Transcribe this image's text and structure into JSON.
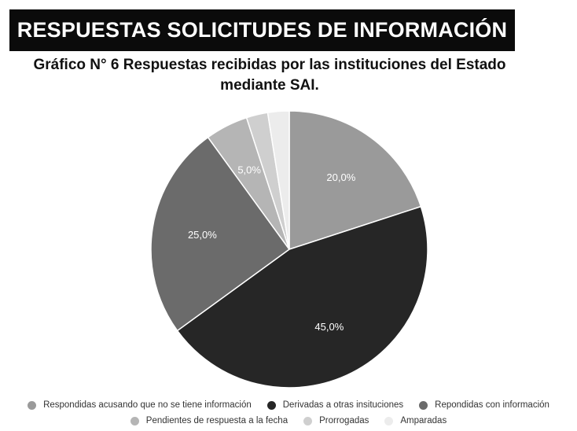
{
  "header": {
    "banner_text": "RESPUESTAS SOLICITUDES DE INFORMACIÓN"
  },
  "chart_data": {
    "type": "pie",
    "title_line1": "Gráfico N° 6 Respuestas recibidas por las instituciones del Estado",
    "title_line2": "mediante SAI.",
    "start_angle_deg": 0,
    "direction": "clockwise",
    "slices": [
      {
        "label": "Respondidas acusando que no se tiene información",
        "value": 20.0,
        "value_label": "20,0%",
        "color": "#9a9a9a",
        "text_color": "#ffffff"
      },
      {
        "label": "Derivadas a otras insituciones",
        "value": 45.0,
        "value_label": "45,0%",
        "color": "#262626",
        "text_color": "#ffffff"
      },
      {
        "label": "Repondidas con información",
        "value": 25.0,
        "value_label": "25,0%",
        "color": "#6b6b6b",
        "text_color": "#ffffff"
      },
      {
        "label": "Pendientes de respuesta a la fecha",
        "value": 5.0,
        "value_label": "5,0%",
        "color": "#b5b5b5",
        "text_color": "#ffffff"
      },
      {
        "label": "Prorrogadas",
        "value": 2.5,
        "value_label": "",
        "color": "#cfcfcf",
        "text_color": "#ffffff"
      },
      {
        "label": "Amparadas",
        "value": 2.5,
        "value_label": "",
        "color": "#ececec",
        "text_color": "#ffffff"
      }
    ],
    "legend_position": "bottom"
  }
}
